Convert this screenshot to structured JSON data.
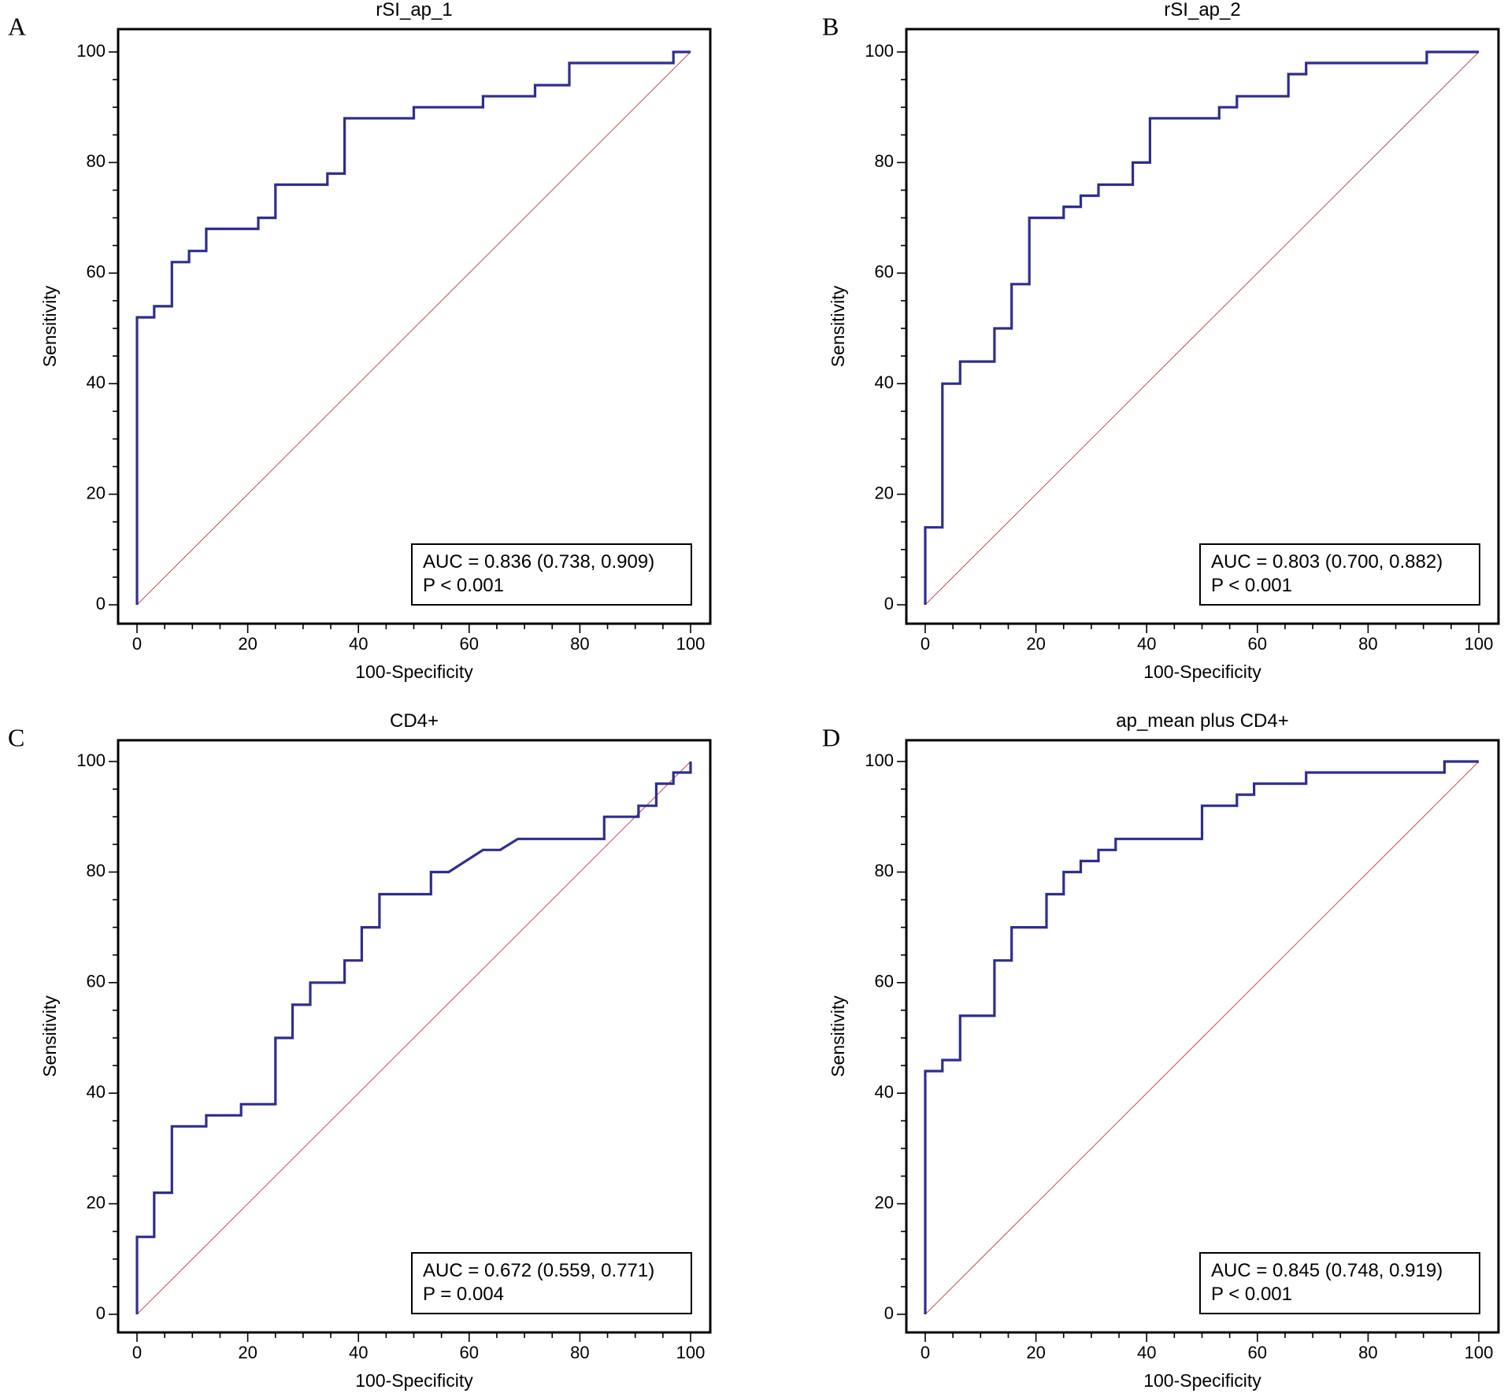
{
  "chart_data": [
    {
      "type": "line",
      "panel": "A",
      "title": "rSI_ap_1",
      "xlabel": "100-Specificity",
      "ylabel": "Sensitivity",
      "xlim": [
        0,
        100
      ],
      "ylim": [
        0,
        100
      ],
      "xticks": [
        0,
        20,
        40,
        60,
        80,
        100
      ],
      "yticks": [
        0,
        20,
        40,
        60,
        80,
        100
      ],
      "annotation": [
        "AUC = 0.836 (0.738, 0.909)",
        "P < 0.001"
      ],
      "series": [
        {
          "name": "ROC",
          "x": [
            0,
            0,
            3.1,
            3.1,
            6.3,
            6.3,
            9.4,
            9.4,
            12.5,
            12.5,
            21.9,
            21.9,
            25,
            25,
            34.4,
            34.4,
            37.5,
            37.5,
            50,
            50,
            62.5,
            62.5,
            71.9,
            71.9,
            78.1,
            78.1,
            96.9,
            96.9,
            100
          ],
          "y": [
            0,
            52,
            52,
            54,
            54,
            62,
            62,
            64,
            64,
            68,
            68,
            70,
            70,
            76,
            76,
            78,
            78,
            88,
            88,
            90,
            90,
            92,
            92,
            94,
            94,
            98,
            98,
            100,
            100
          ]
        },
        {
          "name": "Reference",
          "x": [
            0,
            100
          ],
          "y": [
            0,
            100
          ]
        }
      ]
    },
    {
      "type": "line",
      "panel": "B",
      "title": "rSI_ap_2",
      "xlabel": "100-Specificity",
      "ylabel": "Sensitivity",
      "xlim": [
        0,
        100
      ],
      "ylim": [
        0,
        100
      ],
      "xticks": [
        0,
        20,
        40,
        60,
        80,
        100
      ],
      "yticks": [
        0,
        20,
        40,
        60,
        80,
        100
      ],
      "annotation": [
        "AUC = 0.803 (0.700, 0.882)",
        "P < 0.001"
      ],
      "series": [
        {
          "name": "ROC",
          "x": [
            0,
            0,
            3.1,
            3.1,
            6.3,
            6.3,
            12.5,
            12.5,
            15.6,
            15.6,
            18.8,
            18.8,
            25,
            25,
            28.1,
            28.1,
            31.3,
            31.3,
            37.5,
            37.5,
            40.6,
            40.6,
            53.1,
            53.1,
            56.3,
            56.3,
            65.6,
            65.6,
            68.8,
            68.8,
            90.6,
            90.6,
            100
          ],
          "y": [
            0,
            14,
            14,
            40,
            40,
            44,
            44,
            50,
            50,
            58,
            58,
            70,
            70,
            72,
            72,
            74,
            74,
            76,
            76,
            80,
            80,
            88,
            88,
            90,
            90,
            92,
            92,
            96,
            96,
            98,
            98,
            100,
            100
          ]
        },
        {
          "name": "Reference",
          "x": [
            0,
            100
          ],
          "y": [
            0,
            100
          ]
        }
      ]
    },
    {
      "type": "line",
      "panel": "C",
      "title": "CD4+",
      "xlabel": "100-Specificity",
      "ylabel": "Sensitivity",
      "xlim": [
        0,
        100
      ],
      "ylim": [
        0,
        100
      ],
      "xticks": [
        0,
        20,
        40,
        60,
        80,
        100
      ],
      "yticks": [
        0,
        20,
        40,
        60,
        80,
        100
      ],
      "annotation": [
        "AUC = 0.672 (0.559, 0.771)",
        "P = 0.004"
      ],
      "series": [
        {
          "name": "ROC",
          "x": [
            0,
            0,
            3.1,
            3.1,
            6.3,
            6.3,
            12.5,
            12.5,
            18.8,
            18.8,
            25,
            25,
            28.1,
            28.1,
            31.3,
            31.3,
            37.5,
            37.5,
            40.6,
            40.6,
            43.8,
            43.8,
            53.1,
            53.1,
            56.3,
            62.5,
            65.6,
            68.8,
            84.4,
            84.4,
            90.6,
            90.6,
            93.8,
            93.8,
            96.9,
            96.9,
            100,
            100
          ],
          "y": [
            0,
            14,
            14,
            22,
            22,
            34,
            34,
            36,
            36,
            38,
            38,
            50,
            50,
            56,
            56,
            60,
            60,
            64,
            64,
            70,
            70,
            76,
            76,
            80,
            80,
            84,
            84,
            86,
            86,
            90,
            90,
            92,
            92,
            96,
            96,
            98,
            98,
            100
          ]
        },
        {
          "name": "Reference",
          "x": [
            0,
            100
          ],
          "y": [
            0,
            100
          ]
        }
      ]
    },
    {
      "type": "line",
      "panel": "D",
      "title": "ap_mean plus CD4+",
      "xlabel": "100-Specificity",
      "ylabel": "Sensitivity",
      "xlim": [
        0,
        100
      ],
      "ylim": [
        0,
        100
      ],
      "xticks": [
        0,
        20,
        40,
        60,
        80,
        100
      ],
      "yticks": [
        0,
        20,
        40,
        60,
        80,
        100
      ],
      "annotation": [
        "AUC = 0.845 (0.748, 0.919)",
        "P < 0.001"
      ],
      "series": [
        {
          "name": "ROC",
          "x": [
            0,
            0,
            3.1,
            3.1,
            6.3,
            6.3,
            12.5,
            12.5,
            15.6,
            15.6,
            21.9,
            21.9,
            25,
            25,
            28.1,
            28.1,
            31.3,
            31.3,
            34.4,
            34.4,
            50,
            50,
            56.3,
            56.3,
            59.4,
            59.4,
            68.8,
            68.8,
            93.8,
            93.8,
            100
          ],
          "y": [
            0,
            44,
            44,
            46,
            46,
            54,
            54,
            64,
            64,
            70,
            70,
            76,
            76,
            80,
            80,
            82,
            82,
            84,
            84,
            86,
            86,
            92,
            92,
            94,
            94,
            96,
            96,
            98,
            98,
            100,
            100
          ]
        },
        {
          "name": "Reference",
          "x": [
            0,
            100
          ],
          "y": [
            0,
            100
          ]
        }
      ]
    }
  ]
}
